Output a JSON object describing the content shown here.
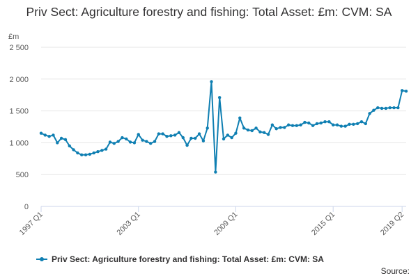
{
  "title": "Priv Sect: Agriculture forestry and fishing: Total Asset: £m: CVM: SA",
  "unit_label": "£m",
  "source_label": "Source:",
  "colors": {
    "series": "#0f7fb2",
    "grid": "#e6e6e6",
    "axis": "#ccd6eb",
    "text": "#323132"
  },
  "chart_data": {
    "type": "line",
    "title": "Priv Sect: Agriculture forestry and fishing: Total Asset: £m: CVM: SA",
    "ylabel": "£m",
    "ylim": [
      0,
      2500
    ],
    "yticks": [
      0,
      500,
      1000,
      1500,
      2000,
      2500
    ],
    "ytick_labels": [
      "0",
      "500",
      "1 000",
      "1 500",
      "2 000",
      "2 500"
    ],
    "xtick_labels": [
      "1997 Q1",
      "2003 Q1",
      "2009 Q1",
      "2015 Q1",
      "2019 Q2"
    ],
    "xtick_indices": [
      0,
      24,
      48,
      72,
      89
    ],
    "grid": true,
    "legend": "bottom",
    "series": [
      {
        "name": "Priv Sect: Agriculture forestry and fishing: Total Asset: £m: CVM: SA",
        "x_start": "1997 Q1",
        "x_end": "2019 Q3",
        "values": [
          1150,
          1120,
          1100,
          1120,
          1000,
          1070,
          1050,
          950,
          890,
          840,
          810,
          810,
          820,
          840,
          860,
          880,
          900,
          1010,
          990,
          1020,
          1080,
          1060,
          1010,
          1000,
          1130,
          1040,
          1020,
          990,
          1020,
          1140,
          1140,
          1100,
          1110,
          1120,
          1160,
          1080,
          960,
          1070,
          1070,
          1140,
          1030,
          1230,
          1960,
          540,
          1710,
          1060,
          1120,
          1080,
          1150,
          1390,
          1230,
          1200,
          1190,
          1230,
          1170,
          1160,
          1130,
          1280,
          1220,
          1240,
          1240,
          1280,
          1270,
          1270,
          1280,
          1320,
          1310,
          1270,
          1300,
          1310,
          1330,
          1330,
          1280,
          1280,
          1260,
          1260,
          1290,
          1290,
          1300,
          1330,
          1300,
          1460,
          1510,
          1550,
          1540,
          1540,
          1550,
          1550,
          1550,
          1820,
          1810
        ]
      }
    ]
  }
}
